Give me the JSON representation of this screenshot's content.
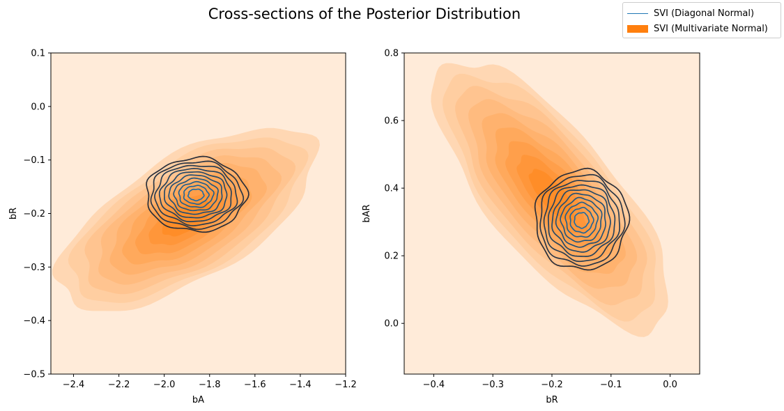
{
  "figure": {
    "title": "Cross-sections of the Posterior Distribution",
    "legend": [
      {
        "label": "SVI (Diagonal Normal)",
        "color": "#1f77b4",
        "style": "line"
      },
      {
        "label": "SVI (Multivariate Normal)",
        "color": "#ff7f0e",
        "style": "patch"
      }
    ]
  },
  "chart_data": [
    {
      "type": "kde-contour",
      "xlabel": "bA",
      "ylabel": "bR",
      "xlim": [
        -2.5,
        -1.2
      ],
      "ylim": [
        -0.5,
        0.1
      ],
      "xticks": [
        -2.4,
        -2.2,
        -2.0,
        -1.8,
        -1.6,
        -1.4,
        -1.2
      ],
      "yticks": [
        -0.5,
        -0.4,
        -0.3,
        -0.2,
        -0.1,
        0.0,
        0.1
      ],
      "xtick_labels": [
        "−2.4",
        "−2.2",
        "−2.0",
        "−1.8",
        "−1.6",
        "−1.4",
        "−1.2"
      ],
      "ytick_labels": [
        "−0.5",
        "−0.4",
        "−0.3",
        "−0.2",
        "−0.1",
        "0.0",
        "0.1"
      ],
      "grid": false,
      "filled_density": {
        "series": "SVI (Multivariate Normal)",
        "center": [
          -1.9,
          -0.21
        ],
        "sd": [
          0.2,
          0.06
        ],
        "correlation": 0.65,
        "levels": 10,
        "color": "#ff7f0e"
      },
      "contour_density": {
        "series": "SVI (Diagonal Normal)",
        "center": [
          -1.86,
          -0.165
        ],
        "sd": [
          0.09,
          0.028
        ],
        "correlation": 0.0,
        "levels": 10,
        "color_outer": "#2a2f3a",
        "color_inner": "#1f77b4"
      }
    },
    {
      "type": "kde-contour",
      "xlabel": "bR",
      "ylabel": "bAR",
      "xlim": [
        -0.45,
        0.05
      ],
      "ylim": [
        -0.15,
        0.8
      ],
      "xticks": [
        -0.4,
        -0.3,
        -0.2,
        -0.1,
        0.0
      ],
      "yticks": [
        0.0,
        0.2,
        0.4,
        0.6,
        0.8
      ],
      "xtick_labels": [
        "−0.4",
        "−0.3",
        "−0.2",
        "−0.1",
        "0.0"
      ],
      "ytick_labels": [
        "0.0",
        "0.2",
        "0.4",
        "0.6",
        "0.8"
      ],
      "grid": false,
      "filled_density": {
        "series": "SVI (Multivariate Normal)",
        "center": [
          -0.2,
          0.38
        ],
        "sd": [
          0.07,
          0.14
        ],
        "correlation": -0.75,
        "levels": 10,
        "color": "#ff7f0e"
      },
      "contour_density": {
        "series": "SVI (Diagonal Normal)",
        "center": [
          -0.15,
          0.305
        ],
        "sd": [
          0.032,
          0.06
        ],
        "correlation": 0.0,
        "levels": 10,
        "color_outer": "#2a2f3a",
        "color_inner": "#1f77b4"
      }
    }
  ]
}
